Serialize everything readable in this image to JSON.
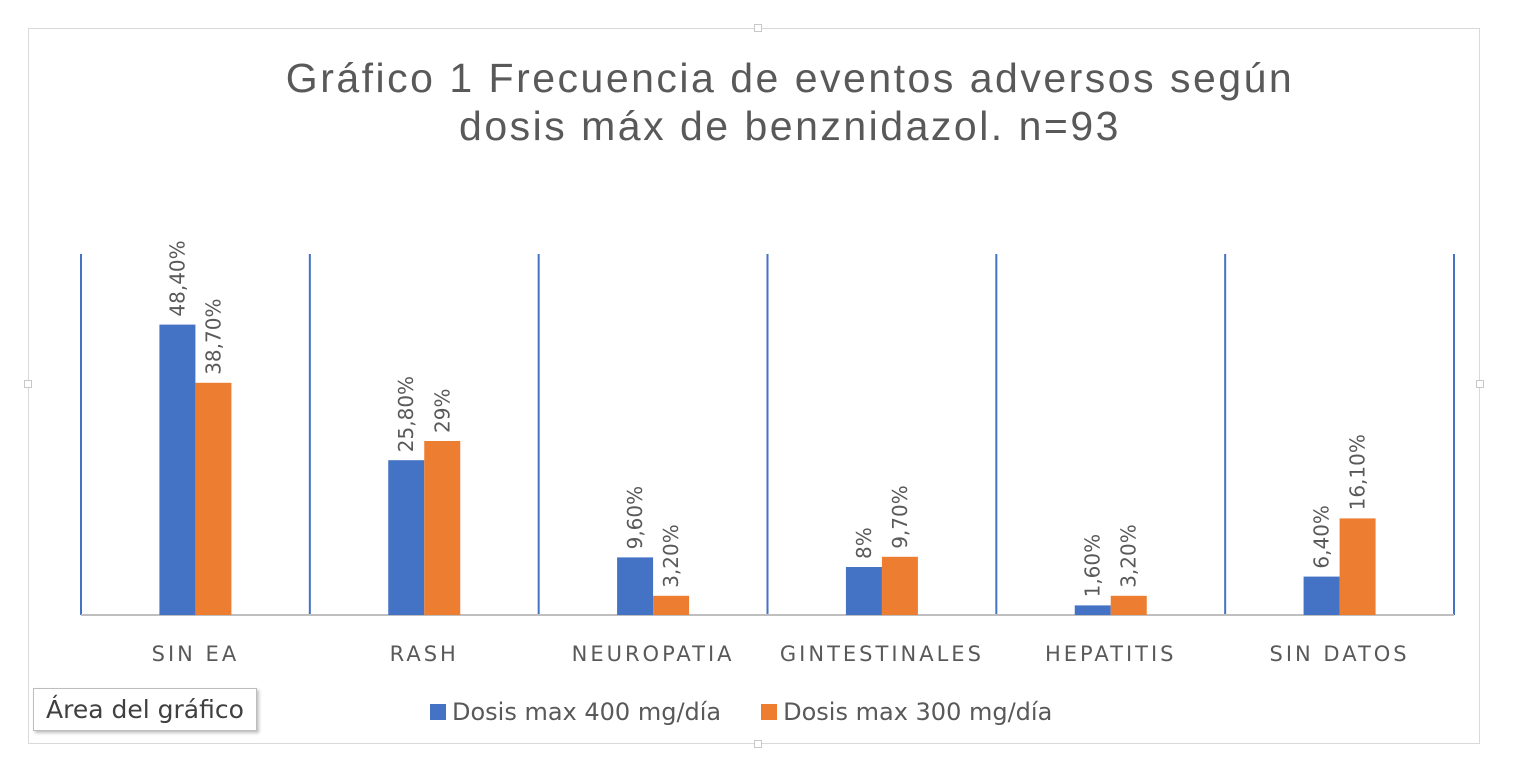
{
  "tooltip": {
    "text": "Área del gráfico"
  },
  "colors": {
    "series1": "#4472C4",
    "series2": "#ED7D31",
    "divider": "#4472C4",
    "axis": "#BFBFBF"
  },
  "chart_data": {
    "type": "bar",
    "title": "Gráfico 1 Frecuencia de eventos adversos según dosis máx de benznidazol. n=93",
    "title_lines": [
      "Gráfico 1 Frecuencia de eventos adversos según",
      "dosis máx de benznidazol. n=93"
    ],
    "categories": [
      "SIN EA",
      "RASH",
      "NEUROPATIA",
      "GINTESTINALES",
      "HEPATITIS",
      "SIN DATOS"
    ],
    "series": [
      {
        "name": "Dosis max 400 mg/día",
        "values": [
          48.4,
          25.8,
          9.6,
          8,
          1.6,
          6.4
        ],
        "labels": [
          "48,40%",
          "25,80%",
          "9,60%",
          "8%",
          "1,60%",
          "6,40%"
        ],
        "color": "#4472C4"
      },
      {
        "name": "Dosis max 300 mg/día",
        "values": [
          38.7,
          29,
          3.2,
          9.7,
          3.2,
          16.1
        ],
        "labels": [
          "38,70%",
          "29%",
          "3,20%",
          "9,70%",
          "3,20%",
          "16,10%"
        ],
        "color": "#ED7D31"
      }
    ],
    "ylim": [
      0,
      60
    ],
    "grid": false,
    "legend_position": "bottom",
    "data_labels": "rotated"
  }
}
